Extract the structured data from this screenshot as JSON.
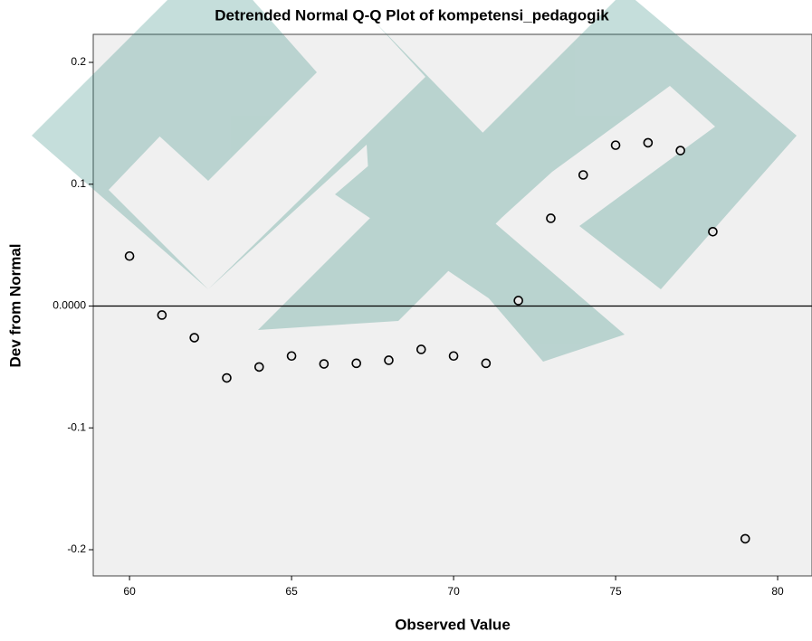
{
  "chart_data": {
    "type": "scatter",
    "title": "Detrended Normal Q-Q Plot of kompetensi_pedagogik",
    "x_label": "Observed Value",
    "y_label": "Dev from Normal",
    "x": [
      60,
      61,
      62,
      63,
      64,
      65,
      66,
      67,
      68,
      69,
      70,
      71,
      72,
      73,
      74,
      75,
      76,
      77,
      78,
      79
    ],
    "values": [
      0.041,
      -0.0074,
      -0.026,
      -0.059,
      -0.05,
      -0.041,
      -0.0475,
      -0.047,
      -0.0445,
      -0.0356,
      -0.041,
      -0.047,
      0.0045,
      0.072,
      0.1076,
      0.132,
      0.134,
      0.1276,
      0.061,
      -0.191
    ],
    "color": "#000000",
    "xlim": [
      58.88,
      81.06
    ],
    "ylim": [
      -0.2215,
      0.223
    ],
    "xticks": [
      60,
      65,
      70,
      75,
      80
    ],
    "yticks": [
      0.2,
      0.1,
      {
        "value": 0,
        "label": "0.0000"
      },
      -0.1,
      -0.2
    ],
    "reference_y": 0
  }
}
